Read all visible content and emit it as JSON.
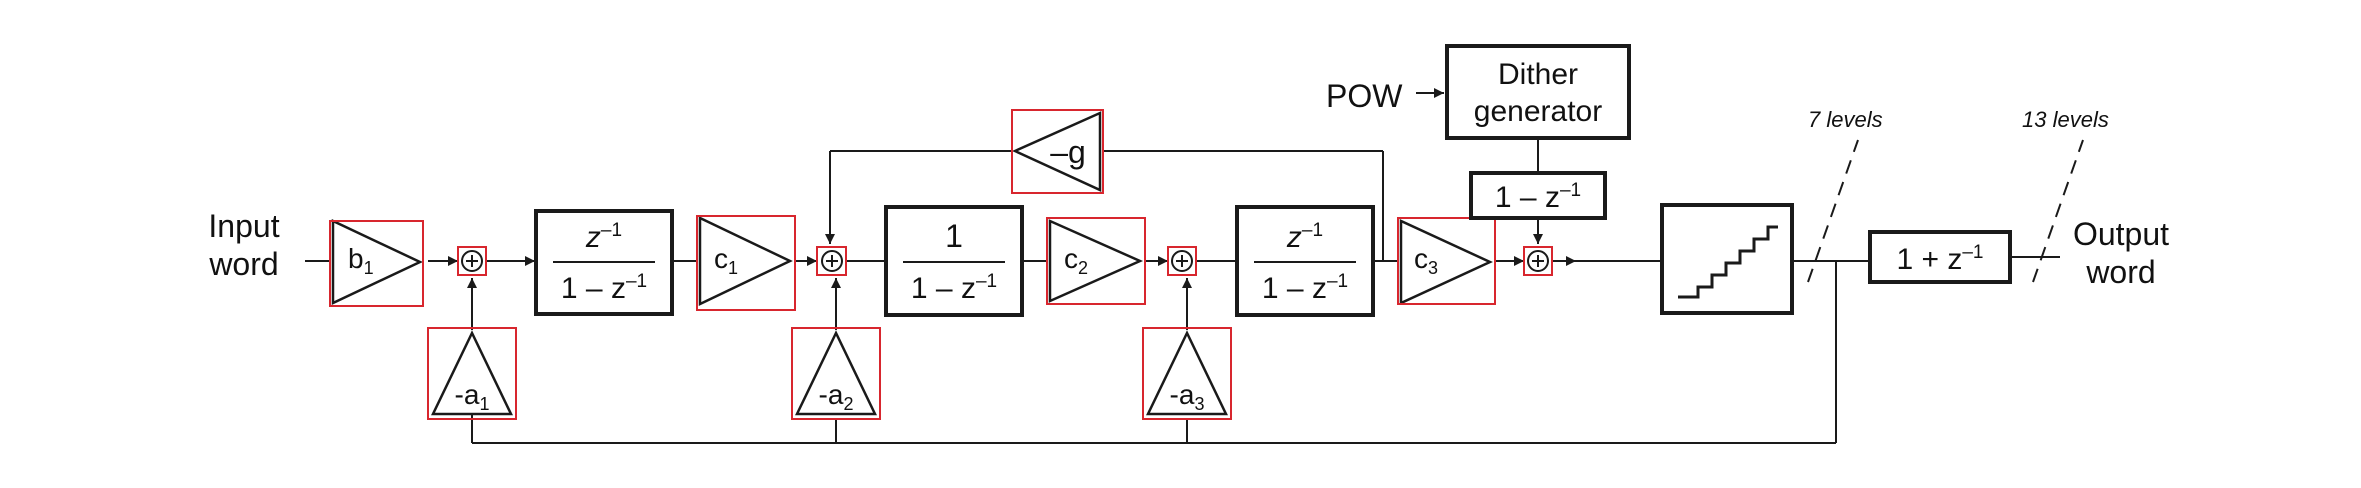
{
  "input": {
    "line1": "Input",
    "line2": "word"
  },
  "output": {
    "line1": "Output",
    "line2": "word"
  },
  "pow_label": "POW",
  "dither": {
    "line1": "Dither",
    "line2": "generator"
  },
  "dither_filter": {
    "text": "1 – z",
    "exp": "–1"
  },
  "gains": {
    "b1": {
      "base": "b",
      "sub": "1"
    },
    "c1": {
      "base": "c",
      "sub": "1"
    },
    "c2": {
      "base": "c",
      "sub": "2"
    },
    "c3": {
      "base": "c",
      "sub": "3"
    },
    "a1": {
      "base": "-a",
      "sub": "1"
    },
    "a2": {
      "base": "-a",
      "sub": "2"
    },
    "a3": {
      "base": "-a",
      "sub": "3"
    },
    "g": "–g"
  },
  "integrator1": {
    "num": "z",
    "num_exp": "–1",
    "den": "1 – z",
    "den_exp": "–1"
  },
  "integrator2": {
    "num": "1",
    "den": "1 – z",
    "den_exp": "–1"
  },
  "integrator3": {
    "num": "z",
    "num_exp": "–1",
    "den": "1 – z",
    "den_exp": "–1"
  },
  "output_filter": {
    "text": "1 + z",
    "exp": "–1"
  },
  "annotations": {
    "levels_in": "7 levels",
    "levels_out": "13 levels"
  },
  "colors": {
    "highlight": "#d8262e",
    "line": "#1a1a1a"
  }
}
